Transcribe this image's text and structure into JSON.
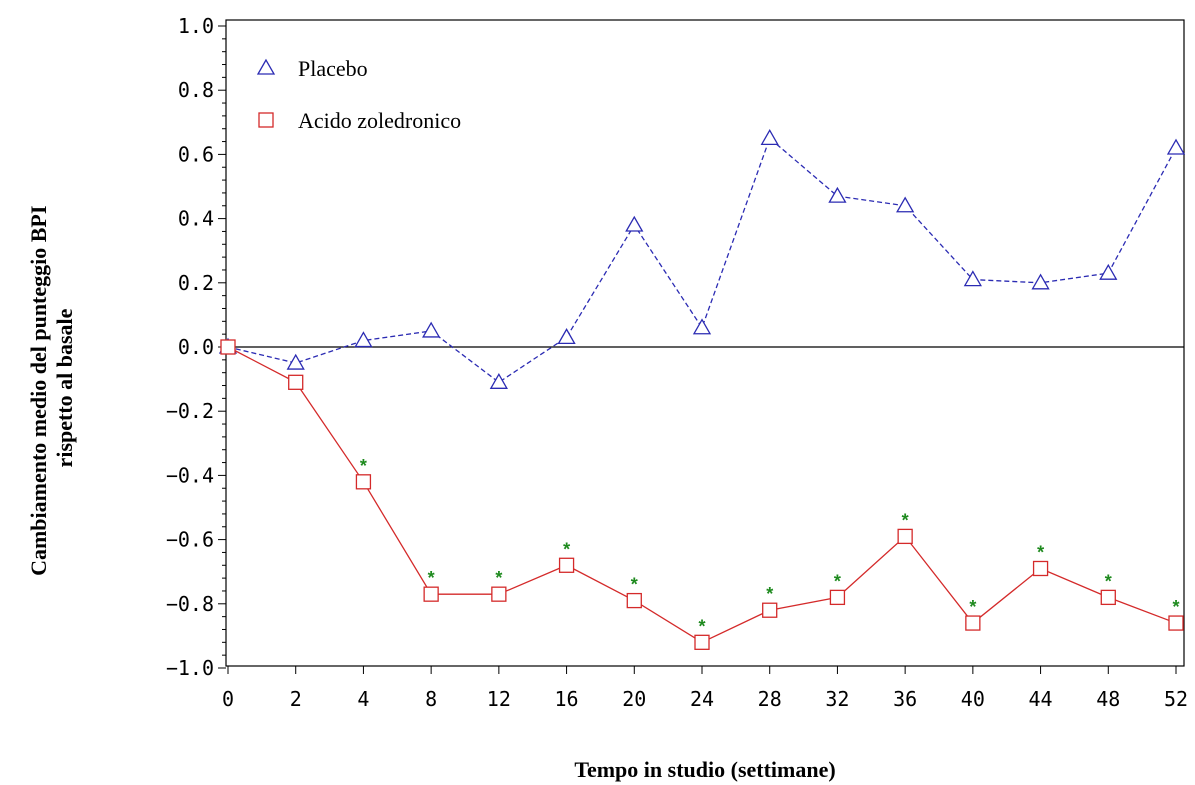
{
  "chart_data": {
    "type": "line",
    "xlabel": "Tempo in studio (settimane)",
    "ylabel_lines": [
      "Cambiamento  medio del punteggio BPI",
      "rispetto al basale"
    ],
    "categories": [
      "0",
      "2",
      "4",
      "8",
      "12",
      "16",
      "20",
      "24",
      "28",
      "32",
      "36",
      "40",
      "44",
      "48",
      "52"
    ],
    "ylim": [
      -1.0,
      1.0
    ],
    "yticks": [
      "1.0",
      "0.8",
      "0.6",
      "0.4",
      "0.2",
      "0.0",
      "−0.2",
      "−0.4",
      "−0.6",
      "−0.8",
      "−1.0"
    ],
    "legend_position": "top-left",
    "reference_line": 0.0,
    "series": [
      {
        "name": "Placebo",
        "marker": "triangle",
        "line_style": "dashed",
        "color": "#2b2bb3",
        "values": [
          0.0,
          -0.05,
          0.02,
          0.05,
          -0.11,
          0.03,
          0.38,
          0.06,
          0.65,
          0.47,
          0.44,
          0.21,
          0.2,
          0.23,
          0.62
        ]
      },
      {
        "name": "Acido zoledronico",
        "marker": "square",
        "line_style": "solid",
        "color": "#d42a2a",
        "values": [
          0.0,
          -0.11,
          -0.42,
          -0.77,
          -0.77,
          -0.68,
          -0.79,
          -0.92,
          -0.82,
          -0.78,
          -0.59,
          -0.86,
          -0.69,
          -0.78,
          -0.86
        ],
        "significance_marks": [
          false,
          false,
          true,
          true,
          true,
          true,
          true,
          true,
          true,
          true,
          true,
          true,
          true,
          true,
          true
        ],
        "significance_symbol": "*",
        "significance_color": "#1e8a1e"
      }
    ]
  }
}
